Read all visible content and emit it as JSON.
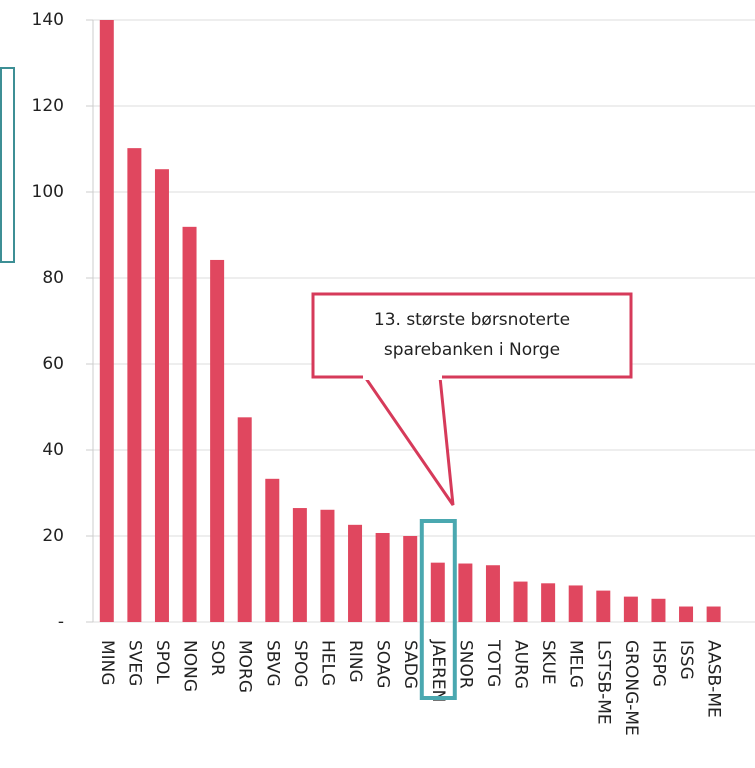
{
  "chart_data": {
    "type": "bar",
    "categories": [
      "MING",
      "SVEG",
      "SPOL",
      "NONG",
      "SOR",
      "MORG",
      "SBVG",
      "SPOG",
      "HELG",
      "RING",
      "SOAG",
      "SADG",
      "JAEREN",
      "SNOR",
      "TOTG",
      "AURG",
      "SKUE",
      "MELG",
      "LSTSB-ME",
      "GRONG-ME",
      "HSPG",
      "ISSG",
      "AASB-ME"
    ],
    "values": [
      140,
      110.2,
      105.3,
      91.9,
      84.2,
      47.6,
      33.3,
      26.5,
      26.1,
      22.6,
      20.7,
      20,
      13.8,
      13.6,
      13.2,
      9.4,
      9,
      8.5,
      7.3,
      5.9,
      5.4,
      3.6,
      3.6
    ],
    "color": "#e0475f",
    "ylim": [
      0,
      140
    ],
    "yticks": [
      {
        "value": 0,
        "label": "-"
      },
      20,
      40,
      60,
      80,
      100,
      120,
      140
    ],
    "grid": true,
    "annotation": [
      "13. største børsnoterte",
      "sparebanken i Norge"
    ]
  }
}
